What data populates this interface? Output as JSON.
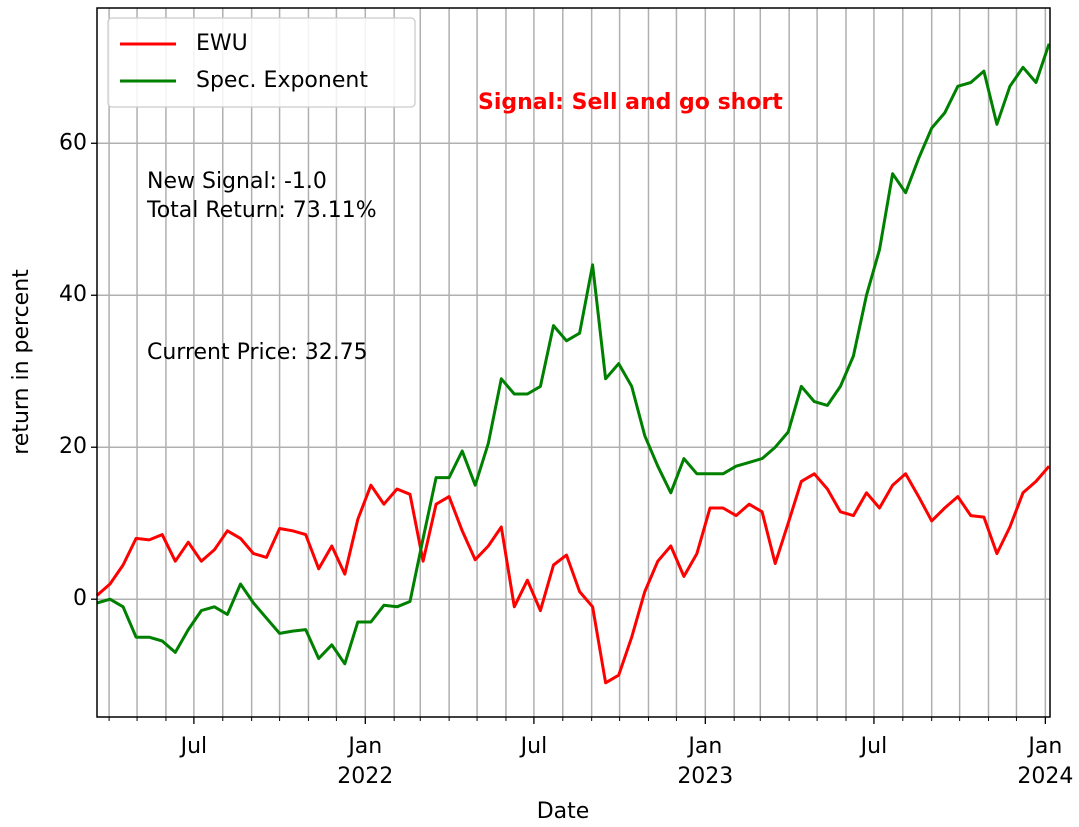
{
  "chart_data": {
    "type": "line",
    "xlabel": "Date",
    "ylabel": "return in percent",
    "annotations": [
      "Signal: Sell and go short",
      "New Signal: -1.0",
      "Total Return: 73.11%",
      "Current Price: 32.75"
    ],
    "annotation_color": "#ff0000",
    "x": [
      "2021-03-19",
      "2021-04-02",
      "2021-04-16",
      "2021-04-30",
      "2021-05-14",
      "2021-05-28",
      "2021-06-11",
      "2021-06-25",
      "2021-07-09",
      "2021-07-23",
      "2021-08-06",
      "2021-08-20",
      "2021-09-03",
      "2021-09-17",
      "2021-10-01",
      "2021-10-15",
      "2021-10-29",
      "2021-11-12",
      "2021-11-26",
      "2021-12-10",
      "2021-12-24",
      "2022-01-07",
      "2022-01-21",
      "2022-02-04",
      "2022-02-18",
      "2022-03-04",
      "2022-03-18",
      "2022-04-01",
      "2022-04-15",
      "2022-04-29",
      "2022-05-13",
      "2022-05-27",
      "2022-06-10",
      "2022-06-24",
      "2022-07-08",
      "2022-07-22",
      "2022-08-05",
      "2022-08-19",
      "2022-09-02",
      "2022-09-16",
      "2022-09-30",
      "2022-10-14",
      "2022-10-28",
      "2022-11-11",
      "2022-11-25",
      "2022-12-09",
      "2022-12-23",
      "2023-01-06",
      "2023-01-20",
      "2023-02-03",
      "2023-02-17",
      "2023-03-03",
      "2023-03-17",
      "2023-03-31",
      "2023-04-14",
      "2023-04-28",
      "2023-05-12",
      "2023-05-26",
      "2023-06-09",
      "2023-06-23",
      "2023-07-07",
      "2023-07-21",
      "2023-08-04",
      "2023-08-18",
      "2023-09-01",
      "2023-09-15",
      "2023-09-29",
      "2023-10-13",
      "2023-10-27",
      "2023-11-10",
      "2023-11-24",
      "2023-12-08",
      "2023-12-22",
      "2024-01-05"
    ],
    "series": [
      {
        "name": "EWU",
        "color": "#ff0000",
        "values": [
          0.5,
          2,
          4.5,
          8,
          7.8,
          8.5,
          5,
          7.5,
          5,
          6.5,
          9,
          8,
          6,
          5.5,
          9.3,
          9,
          8.5,
          4,
          7,
          3.3,
          10.5,
          15,
          12.5,
          14.5,
          13.8,
          5,
          12.5,
          13.5,
          9,
          5.2,
          7,
          9.5,
          -1,
          2.5,
          -1.5,
          4.5,
          5.8,
          1,
          -1,
          -11,
          -10,
          -5,
          1,
          5,
          7,
          3,
          6,
          12,
          12,
          11,
          12.5,
          11.5,
          4.7,
          10,
          15.5,
          16.5,
          14.5,
          11.5,
          11,
          14,
          12,
          15,
          16.5,
          13.5,
          10.3,
          12,
          13.5,
          11,
          10.8,
          6,
          9.5,
          14,
          15.5,
          17.5
        ]
      },
      {
        "name": "Spec. Exponent",
        "color": "#008000",
        "values": [
          -0.5,
          0,
          -1,
          -5,
          -5,
          -5.5,
          -7,
          -4,
          -1.5,
          -1,
          -2,
          2,
          -0.5,
          -2.5,
          -4.5,
          -4.2,
          -4,
          -7.8,
          -6,
          -8.5,
          -3,
          -3,
          -0.8,
          -1,
          -0.3,
          8,
          16,
          16,
          19.5,
          15,
          20.5,
          29,
          27,
          27,
          28,
          36,
          34,
          35,
          44,
          29,
          31,
          28,
          21.5,
          17.5,
          14,
          18.5,
          16.5,
          16.5,
          16.5,
          17.5,
          18,
          18.5,
          20,
          22,
          28,
          26,
          25.5,
          28,
          32,
          40,
          46,
          56,
          53.5,
          58,
          62,
          64,
          67.5,
          68,
          69.5,
          62.5,
          67.5,
          70,
          68,
          73.1
        ]
      }
    ],
    "xlim": [
      "2021-03-19",
      "2024-01-06"
    ],
    "xticks": [
      {
        "value": "2021-07-01",
        "label": "Jul"
      },
      {
        "value": "2022-01-01",
        "label": "Jan\n2022"
      },
      {
        "value": "2022-07-01",
        "label": "Jul"
      },
      {
        "value": "2023-01-01",
        "label": "Jan\n2023"
      },
      {
        "value": "2023-07-01",
        "label": "Jul"
      },
      {
        "value": "2024-01-01",
        "label": "Jan\n2024"
      }
    ],
    "xminor_ticks": [
      "2021-04-01",
      "2021-05-01",
      "2021-06-01",
      "2021-08-01",
      "2021-09-01",
      "2021-10-01",
      "2021-11-01",
      "2021-12-01",
      "2022-02-01",
      "2022-03-01",
      "2022-04-01",
      "2022-05-01",
      "2022-06-01",
      "2022-08-01",
      "2022-09-01",
      "2022-10-01",
      "2022-11-01",
      "2022-12-01",
      "2023-02-01",
      "2023-03-01",
      "2023-04-01",
      "2023-05-01",
      "2023-06-01",
      "2023-08-01",
      "2023-09-01",
      "2023-10-01",
      "2023-11-01",
      "2023-12-01"
    ],
    "ylim": [
      -15.5,
      77.8
    ],
    "yticks": [
      0,
      20,
      40,
      60
    ],
    "grid": true,
    "legend": "upper left"
  }
}
